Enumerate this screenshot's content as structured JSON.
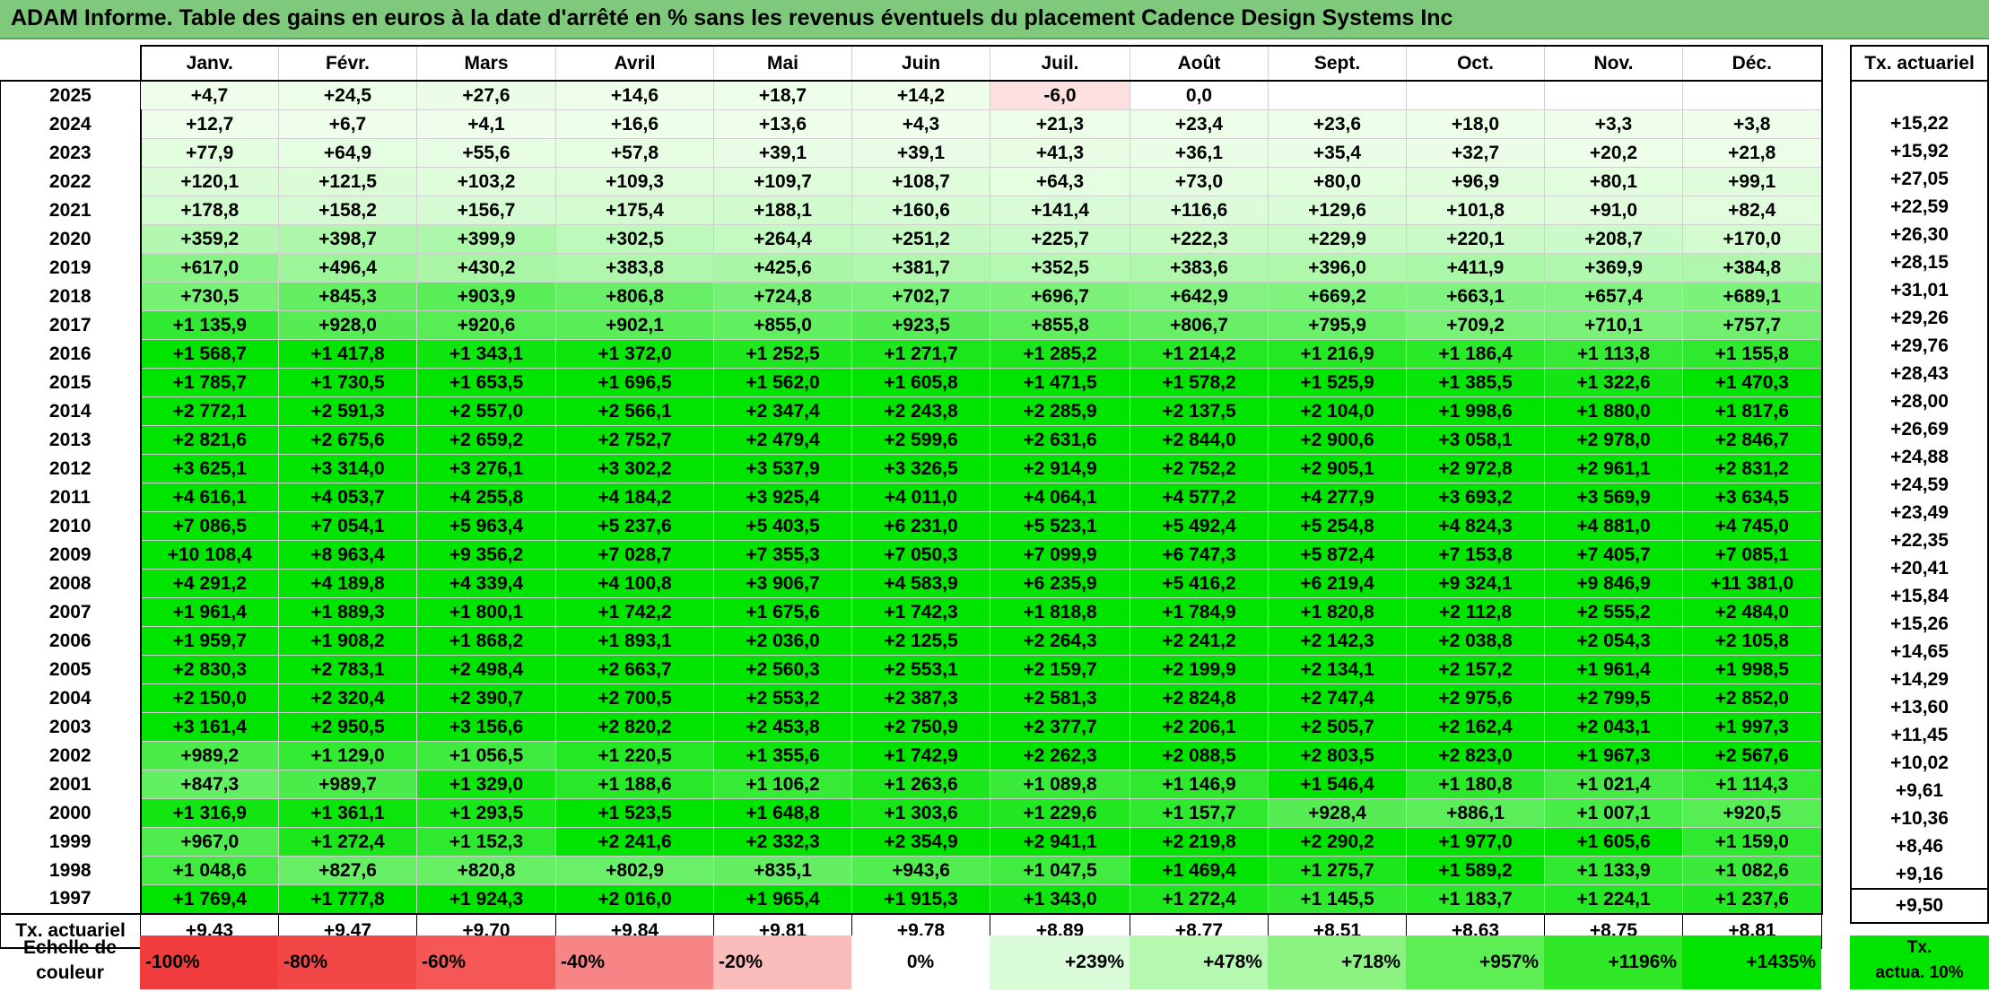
{
  "title": "ADAM Informe. Table des gains en euros à la date d'arrêté en % sans les revenus éventuels du placement Cadence Design Systems Inc",
  "months": [
    "Janv.",
    "Févr.",
    "Mars",
    "Avril",
    "Mai",
    "Juin",
    "Juil.",
    "Août",
    "Sept.",
    "Oct.",
    "Nov.",
    "Déc."
  ],
  "actuarial_header": "Tx. actuariel",
  "rows": [
    {
      "year": "2025",
      "v": [
        "+4,7",
        "+24,5",
        "+27,6",
        "+14,6",
        "+18,7",
        "+14,2",
        "-6,0",
        "0,0",
        "",
        "",
        "",
        ""
      ],
      "act": ""
    },
    {
      "year": "2024",
      "v": [
        "+12,7",
        "+6,7",
        "+4,1",
        "+16,6",
        "+13,6",
        "+4,3",
        "+21,3",
        "+23,4",
        "+23,6",
        "+18,0",
        "+3,3",
        "+3,8"
      ],
      "act": "+15,22"
    },
    {
      "year": "2023",
      "v": [
        "+77,9",
        "+64,9",
        "+55,6",
        "+57,8",
        "+39,1",
        "+39,1",
        "+41,3",
        "+36,1",
        "+35,4",
        "+32,7",
        "+20,2",
        "+21,8"
      ],
      "act": "+15,92"
    },
    {
      "year": "2022",
      "v": [
        "+120,1",
        "+121,5",
        "+103,2",
        "+109,3",
        "+109,7",
        "+108,7",
        "+64,3",
        "+73,0",
        "+80,0",
        "+96,9",
        "+80,1",
        "+99,1"
      ],
      "act": "+27,05"
    },
    {
      "year": "2021",
      "v": [
        "+178,8",
        "+158,2",
        "+156,7",
        "+175,4",
        "+188,1",
        "+160,6",
        "+141,4",
        "+116,6",
        "+129,6",
        "+101,8",
        "+91,0",
        "+82,4"
      ],
      "act": "+22,59"
    },
    {
      "year": "2020",
      "v": [
        "+359,2",
        "+398,7",
        "+399,9",
        "+302,5",
        "+264,4",
        "+251,2",
        "+225,7",
        "+222,3",
        "+229,9",
        "+220,1",
        "+208,7",
        "+170,0"
      ],
      "act": "+26,30"
    },
    {
      "year": "2019",
      "v": [
        "+617,0",
        "+496,4",
        "+430,2",
        "+383,8",
        "+425,6",
        "+381,7",
        "+352,5",
        "+383,6",
        "+396,0",
        "+411,9",
        "+369,9",
        "+384,8"
      ],
      "act": "+28,15"
    },
    {
      "year": "2018",
      "v": [
        "+730,5",
        "+845,3",
        "+903,9",
        "+806,8",
        "+724,8",
        "+702,7",
        "+696,7",
        "+642,9",
        "+669,2",
        "+663,1",
        "+657,4",
        "+689,1"
      ],
      "act": "+31,01"
    },
    {
      "year": "2017",
      "v": [
        "+1 135,9",
        "+928,0",
        "+920,6",
        "+902,1",
        "+855,0",
        "+923,5",
        "+855,8",
        "+806,7",
        "+795,9",
        "+709,2",
        "+710,1",
        "+757,7"
      ],
      "act": "+29,26"
    },
    {
      "year": "2016",
      "v": [
        "+1 568,7",
        "+1 417,8",
        "+1 343,1",
        "+1 372,0",
        "+1 252,5",
        "+1 271,7",
        "+1 285,2",
        "+1 214,2",
        "+1 216,9",
        "+1 186,4",
        "+1 113,8",
        "+1 155,8"
      ],
      "act": "+29,76"
    },
    {
      "year": "2015",
      "v": [
        "+1 785,7",
        "+1 730,5",
        "+1 653,5",
        "+1 696,5",
        "+1 562,0",
        "+1 605,8",
        "+1 471,5",
        "+1 578,2",
        "+1 525,9",
        "+1 385,5",
        "+1 322,6",
        "+1 470,3"
      ],
      "act": "+28,43"
    },
    {
      "year": "2014",
      "v": [
        "+2 772,1",
        "+2 591,3",
        "+2 557,0",
        "+2 566,1",
        "+2 347,4",
        "+2 243,8",
        "+2 285,9",
        "+2 137,5",
        "+2 104,0",
        "+1 998,6",
        "+1 880,0",
        "+1 817,6"
      ],
      "act": "+28,00"
    },
    {
      "year": "2013",
      "v": [
        "+2 821,6",
        "+2 675,6",
        "+2 659,2",
        "+2 752,7",
        "+2 479,4",
        "+2 599,6",
        "+2 631,6",
        "+2 844,0",
        "+2 900,6",
        "+3 058,1",
        "+2 978,0",
        "+2 846,7"
      ],
      "act": "+26,69"
    },
    {
      "year": "2012",
      "v": [
        "+3 625,1",
        "+3 314,0",
        "+3 276,1",
        "+3 302,2",
        "+3 537,9",
        "+3 326,5",
        "+2 914,9",
        "+2 752,2",
        "+2 905,1",
        "+2 972,8",
        "+2 961,1",
        "+2 831,2"
      ],
      "act": "+24,88"
    },
    {
      "year": "2011",
      "v": [
        "+4 616,1",
        "+4 053,7",
        "+4 255,8",
        "+4 184,2",
        "+3 925,4",
        "+4 011,0",
        "+4 064,1",
        "+4 577,2",
        "+4 277,9",
        "+3 693,2",
        "+3 569,9",
        "+3 634,5"
      ],
      "act": "+24,59"
    },
    {
      "year": "2010",
      "v": [
        "+7 086,5",
        "+7 054,1",
        "+5 963,4",
        "+5 237,6",
        "+5 403,5",
        "+6 231,0",
        "+5 523,1",
        "+5 492,4",
        "+5 254,8",
        "+4 824,3",
        "+4 881,0",
        "+4 745,0"
      ],
      "act": "+23,49"
    },
    {
      "year": "2009",
      "v": [
        "+10 108,4",
        "+8 963,4",
        "+9 356,2",
        "+7 028,7",
        "+7 355,3",
        "+7 050,3",
        "+7 099,9",
        "+6 747,3",
        "+5 872,4",
        "+7 153,8",
        "+7 405,7",
        "+7 085,1"
      ],
      "act": "+22,35"
    },
    {
      "year": "2008",
      "v": [
        "+4 291,2",
        "+4 189,8",
        "+4 339,4",
        "+4 100,8",
        "+3 906,7",
        "+4 583,9",
        "+6 235,9",
        "+5 416,2",
        "+6 219,4",
        "+9 324,1",
        "+9 846,9",
        "+11 381,0"
      ],
      "act": "+20,41"
    },
    {
      "year": "2007",
      "v": [
        "+1 961,4",
        "+1 889,3",
        "+1 800,1",
        "+1 742,2",
        "+1 675,6",
        "+1 742,3",
        "+1 818,8",
        "+1 784,9",
        "+1 820,8",
        "+2 112,8",
        "+2 555,2",
        "+2 484,0"
      ],
      "act": "+15,84"
    },
    {
      "year": "2006",
      "v": [
        "+1 959,7",
        "+1 908,2",
        "+1 868,2",
        "+1 893,1",
        "+2 036,0",
        "+2 125,5",
        "+2 264,3",
        "+2 241,2",
        "+2 142,3",
        "+2 038,8",
        "+2 054,3",
        "+2 105,8"
      ],
      "act": "+15,26"
    },
    {
      "year": "2005",
      "v": [
        "+2 830,3",
        "+2 783,1",
        "+2 498,4",
        "+2 663,7",
        "+2 560,3",
        "+2 553,1",
        "+2 159,7",
        "+2 199,9",
        "+2 134,1",
        "+2 157,2",
        "+1 961,4",
        "+1 998,5"
      ],
      "act": "+14,65"
    },
    {
      "year": "2004",
      "v": [
        "+2 150,0",
        "+2 320,4",
        "+2 390,7",
        "+2 700,5",
        "+2 553,2",
        "+2 387,3",
        "+2 581,3",
        "+2 824,8",
        "+2 747,4",
        "+2 975,6",
        "+2 799,5",
        "+2 852,0"
      ],
      "act": "+14,29"
    },
    {
      "year": "2003",
      "v": [
        "+3 161,4",
        "+2 950,5",
        "+3 156,6",
        "+2 820,2",
        "+2 453,8",
        "+2 750,9",
        "+2 377,7",
        "+2 206,1",
        "+2 505,7",
        "+2 162,4",
        "+2 043,1",
        "+1 997,3"
      ],
      "act": "+13,60"
    },
    {
      "year": "2002",
      "v": [
        "+989,2",
        "+1 129,0",
        "+1 056,5",
        "+1 220,5",
        "+1 355,6",
        "+1 742,9",
        "+2 262,3",
        "+2 088,5",
        "+2 803,5",
        "+2 823,0",
        "+1 967,3",
        "+2 567,6"
      ],
      "act": "+11,45"
    },
    {
      "year": "2001",
      "v": [
        "+847,3",
        "+989,7",
        "+1 329,0",
        "+1 188,6",
        "+1 106,2",
        "+1 263,6",
        "+1 089,8",
        "+1 146,9",
        "+1 546,4",
        "+1 180,8",
        "+1 021,4",
        "+1 114,3"
      ],
      "act": "+10,02"
    },
    {
      "year": "2000",
      "v": [
        "+1 316,9",
        "+1 361,1",
        "+1 293,5",
        "+1 523,5",
        "+1 648,8",
        "+1 303,6",
        "+1 229,6",
        "+1 157,7",
        "+928,4",
        "+886,1",
        "+1 007,1",
        "+920,5"
      ],
      "act": "+9,61"
    },
    {
      "year": "1999",
      "v": [
        "+967,0",
        "+1 272,4",
        "+1 152,3",
        "+2 241,6",
        "+2 332,3",
        "+2 354,9",
        "+2 941,1",
        "+2 219,8",
        "+2 290,2",
        "+1 977,0",
        "+1 605,6",
        "+1 159,0"
      ],
      "act": "+10,36"
    },
    {
      "year": "1998",
      "v": [
        "+1 048,6",
        "+827,6",
        "+820,8",
        "+802,9",
        "+835,1",
        "+943,6",
        "+1 047,5",
        "+1 469,4",
        "+1 275,7",
        "+1 589,2",
        "+1 133,9",
        "+1 082,6"
      ],
      "act": "+8,46"
    },
    {
      "year": "1997",
      "v": [
        "+1 769,4",
        "+1 777,8",
        "+1 924,3",
        "+2 016,0",
        "+1 965,4",
        "+1 915,3",
        "+1 343,0",
        "+1 272,4",
        "+1 145,5",
        "+1 183,7",
        "+1 224,1",
        "+1 237,6"
      ],
      "act": "+9,16"
    }
  ],
  "footer": {
    "label": "Tx. actuariel",
    "v": [
      "+9,43",
      "+9,47",
      "+9,70",
      "+9,84",
      "+9,81",
      "+9,78",
      "+8,89",
      "+8,77",
      "+8,51",
      "+8,63",
      "+8,75",
      "+8,81"
    ],
    "act": "+9,50"
  },
  "scale": {
    "label_line1": "Echelle de",
    "label_line2": "couleur",
    "items": [
      {
        "text": "-100%",
        "color": "#f03c3c",
        "kind": "neg"
      },
      {
        "text": "-80%",
        "color": "#f24646",
        "kind": "neg"
      },
      {
        "text": "-60%",
        "color": "#f55656",
        "kind": "neg"
      },
      {
        "text": "-40%",
        "color": "#f88585",
        "kind": "neg"
      },
      {
        "text": "-20%",
        "color": "#fbbcbc",
        "kind": "neg"
      },
      {
        "text": "0%",
        "color": "#ffffff",
        "kind": "zero"
      },
      {
        "text": "+239%",
        "color": "#dbfcd8",
        "kind": "pos"
      },
      {
        "text": "+478%",
        "color": "#b5f8af",
        "kind": "pos"
      },
      {
        "text": "+718%",
        "color": "#8af382",
        "kind": "pos"
      },
      {
        "text": "+957%",
        "color": "#5cee52",
        "kind": "pos"
      },
      {
        "text": "+1196%",
        "color": "#30e825",
        "kind": "pos"
      },
      {
        "text": "+1435%",
        "color": "#00e400",
        "kind": "pos"
      }
    ],
    "act_line1": "Tx.",
    "act_line2": "actua. 10%"
  },
  "colors": {
    "title_bg": "#7fc97c",
    "negative_light": "#fde1e1",
    "max_green": "#00e400"
  }
}
